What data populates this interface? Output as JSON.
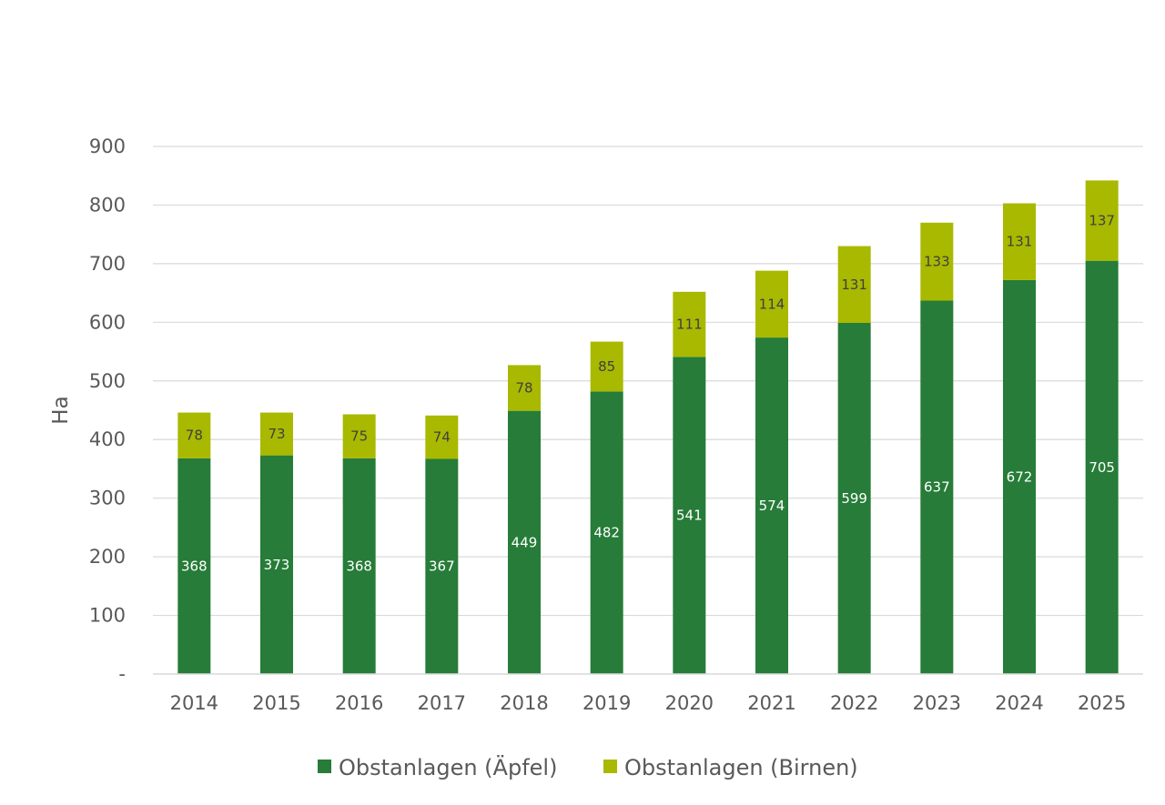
{
  "chart_data": {
    "type": "bar",
    "stacked": true,
    "title": "",
    "xlabel": "",
    "ylabel": "Ha",
    "ylim": [
      0,
      900
    ],
    "yticks": [
      0,
      100,
      200,
      300,
      400,
      500,
      600,
      700,
      800,
      900
    ],
    "ytick_labels": [
      "-",
      "100",
      "200",
      "300",
      "400",
      "500",
      "600",
      "700",
      "800",
      "900"
    ],
    "grid": true,
    "legend_position": "bottom",
    "categories": [
      "2014",
      "2015",
      "2016",
      "2017",
      "2018",
      "2019",
      "2020",
      "2021",
      "2022",
      "2023",
      "2024",
      "2025"
    ],
    "series": [
      {
        "name": "Obstanlagen (Äpfel)",
        "color": "#267c38",
        "values": [
          368,
          373,
          368,
          367,
          449,
          482,
          541,
          574,
          599,
          637,
          672,
          705
        ]
      },
      {
        "name": "Obstanlagen (Birnen)",
        "color": "#a8b900",
        "values": [
          78,
          73,
          75,
          74,
          78,
          85,
          111,
          114,
          131,
          133,
          131,
          137
        ]
      }
    ]
  }
}
